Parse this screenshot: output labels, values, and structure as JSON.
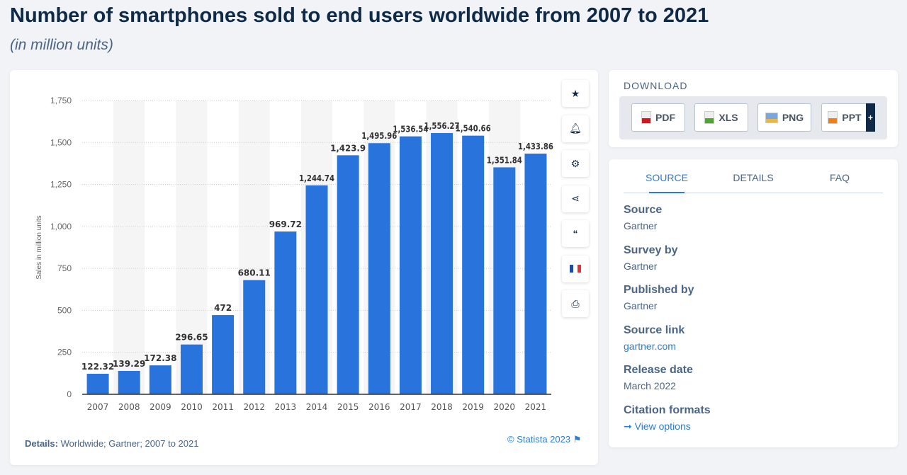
{
  "header": {
    "title": "Number of smartphones sold to end users worldwide from 2007 to 2021",
    "subtitle": "(in million units)"
  },
  "chart_data": {
    "type": "bar",
    "title": "Number of smartphones sold to end users worldwide from 2007 to 2021",
    "ylabel": "Sales in million units",
    "xlabel": "",
    "categories": [
      "2007",
      "2008",
      "2009",
      "2010",
      "2011",
      "2012",
      "2013",
      "2014",
      "2015",
      "2016",
      "2017",
      "2018",
      "2019",
      "2020",
      "2021"
    ],
    "values": [
      122.32,
      139.29,
      172.38,
      296.65,
      472,
      680.11,
      969.72,
      1244.74,
      1423.9,
      1495.96,
      1536.54,
      1556.27,
      1540.66,
      1351.84,
      1433.86
    ],
    "value_labels": [
      "122.32",
      "139.29",
      "172.38",
      "296.65",
      "472",
      "680.11",
      "969.72",
      "1,244.74",
      "1,423.9",
      "1,495.96",
      "1,536.54",
      "1,556.27",
      "1,540.66",
      "1,351.84",
      "1,433.86"
    ],
    "ylim": [
      0,
      1750
    ],
    "yticks": [
      "0",
      "250",
      "500",
      "750",
      "1,000",
      "1,250",
      "1,500",
      "1,750"
    ],
    "grid": true,
    "bar_color": "#2874dc",
    "legend": "none"
  },
  "chart_footer": {
    "details_label": "Details:",
    "details_text": "Worldwide; Gartner; 2007 to 2021",
    "copyright": "© Statista 2023"
  },
  "tools": [
    "star-icon",
    "bell-icon",
    "gear-icon",
    "share-icon",
    "quote-icon",
    "french-flag-icon",
    "print-icon"
  ],
  "download": {
    "heading": "DOWNLOAD",
    "buttons": [
      "PDF",
      "XLS",
      "PNG",
      "PPT"
    ],
    "plus": "+"
  },
  "source_panel": {
    "tabs": [
      "SOURCE",
      "DETAILS",
      "FAQ"
    ],
    "items": [
      {
        "label": "Source",
        "value": "Gartner"
      },
      {
        "label": "Survey by",
        "value": "Gartner"
      },
      {
        "label": "Published by",
        "value": "Gartner"
      },
      {
        "label": "Source link",
        "value": "gartner.com"
      },
      {
        "label": "Release date",
        "value": "March 2022"
      },
      {
        "label": "Citation formats",
        "value": "➞ View options"
      }
    ]
  }
}
